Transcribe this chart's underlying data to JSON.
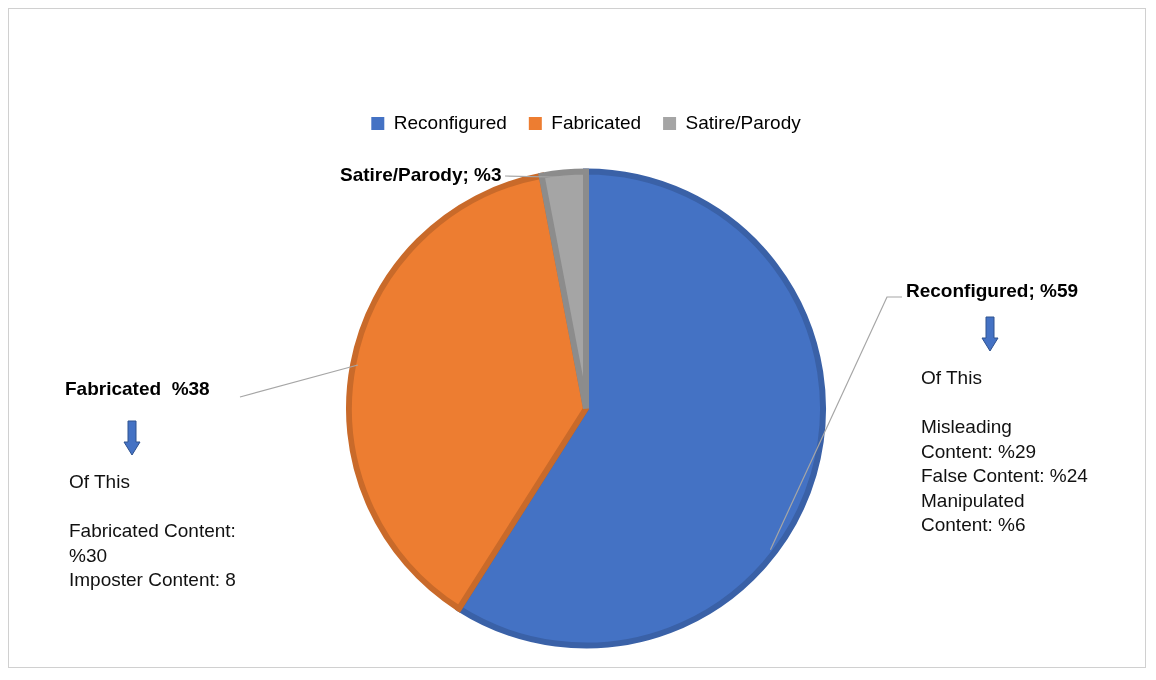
{
  "chart_data": {
    "type": "pie",
    "categories": [
      "Reconfigured",
      "Fabricated",
      "Satire/Parody"
    ],
    "values": [
      59,
      38,
      3
    ],
    "colors": [
      "#4472c4",
      "#ed7d31",
      "#a5a5a5"
    ],
    "value_labels": [
      "Reconfigured; %59",
      "Fabricated  %38",
      "Satire/Parody; %3"
    ],
    "legend": "top",
    "annotations": [
      "Of This\n\nMisleading\nContent: %29\nFalse Content: %24\nManipulated\nContent: %6",
      "Of This\n\nFabricated Content:\n%30\nImposter Content: 8"
    ]
  }
}
